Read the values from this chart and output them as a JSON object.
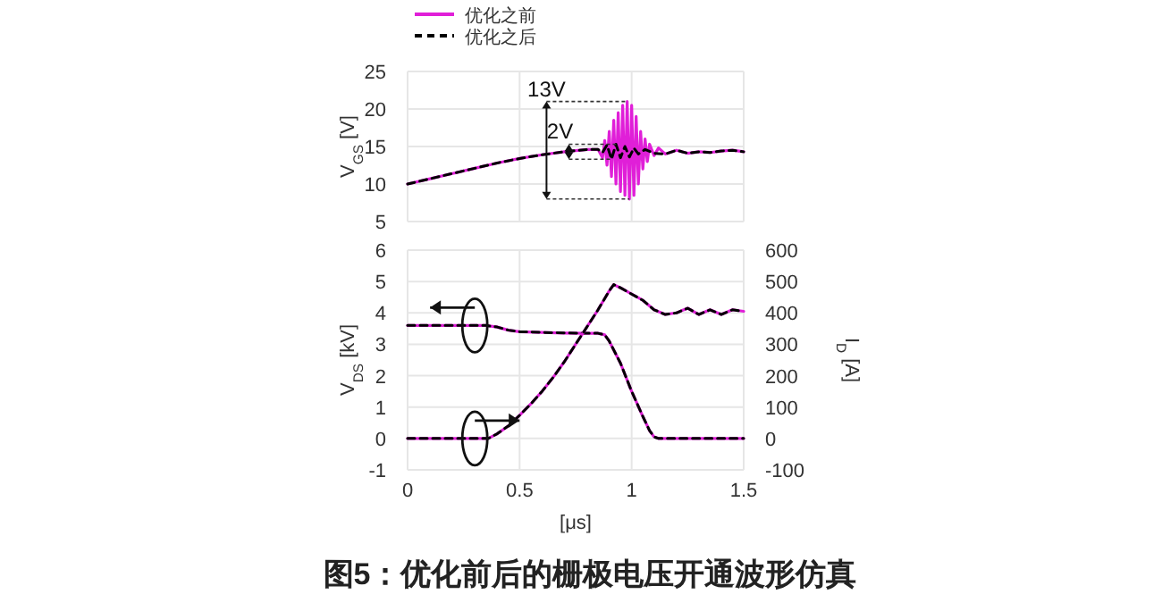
{
  "chart_data": [
    {
      "type": "line",
      "ylabel": "V$_{GS}$ [V]",
      "xlim": [
        0,
        1.5
      ],
      "xticks": [
        0,
        0.5,
        1,
        1.5
      ],
      "ylim": [
        5,
        25
      ],
      "yticks": [
        5,
        10,
        15,
        20,
        25
      ],
      "tick_labels": "y",
      "grid": true,
      "legend": "top left",
      "series": [
        {
          "name": "优化之前",
          "color": "#e01fd8",
          "line_style": "solid",
          "x": [
            0,
            0.1,
            0.2,
            0.3,
            0.4,
            0.5,
            0.6,
            0.7,
            0.8,
            0.85,
            0.87,
            0.88,
            0.89,
            0.9,
            0.91,
            0.92,
            0.93,
            0.94,
            0.95,
            0.96,
            0.97,
            0.98,
            0.99,
            1.0,
            1.01,
            1.02,
            1.03,
            1.04,
            1.05,
            1.06,
            1.07,
            1.08,
            1.1,
            1.12,
            1.15,
            1.2,
            1.25,
            1.3,
            1.35,
            1.4,
            1.45,
            1.5
          ],
          "values": [
            10,
            10.7,
            11.4,
            12.1,
            12.8,
            13.4,
            13.9,
            14.3,
            14.6,
            14.6,
            13.5,
            15.8,
            12.5,
            17,
            11,
            18.5,
            10,
            19.5,
            9,
            20.5,
            8.5,
            21,
            8,
            20.5,
            8.5,
            19,
            10,
            17,
            12,
            16,
            13,
            15.3,
            13.8,
            14.8,
            14,
            14.5,
            14.1,
            14.3,
            14.2,
            14.4,
            14.5,
            14.3
          ]
        },
        {
          "name": "优化之后",
          "color": "#000000",
          "line_style": "dashed",
          "x": [
            0,
            0.1,
            0.2,
            0.3,
            0.4,
            0.5,
            0.6,
            0.7,
            0.8,
            0.85,
            0.87,
            0.89,
            0.91,
            0.93,
            0.95,
            0.97,
            0.99,
            1.01,
            1.03,
            1.06,
            1.1,
            1.15,
            1.2,
            1.25,
            1.3,
            1.35,
            1.4,
            1.45,
            1.5
          ],
          "values": [
            10,
            10.7,
            11.4,
            12.1,
            12.8,
            13.4,
            13.9,
            14.3,
            14.6,
            14.6,
            14.2,
            15.2,
            13.3,
            15.3,
            13.5,
            15,
            13.6,
            14.8,
            14,
            14.6,
            14.1,
            14,
            14.5,
            14.1,
            14.3,
            14.2,
            14.4,
            14.5,
            14.3
          ]
        }
      ],
      "annotations": [
        {
          "text": "13V",
          "x": 0.62,
          "y": 21
        },
        {
          "text": "2V",
          "x": 0.72,
          "y": 15.3
        }
      ]
    },
    {
      "type": "line",
      "xlabel": "[μs]",
      "ylabel": "V$_{DS}$ [kV]",
      "y2label": "I$_{D}$ [A]",
      "xlim": [
        0,
        1.5
      ],
      "xticks": [
        0,
        0.5,
        1,
        1.5
      ],
      "ylim": [
        -1,
        6
      ],
      "yticks": [
        -1,
        0,
        1,
        2,
        3,
        4,
        5,
        6
      ],
      "y2lim": [
        -100,
        600
      ],
      "y2ticks": [
        -100,
        0,
        100,
        200,
        300,
        400,
        500,
        600
      ],
      "grid": true,
      "series": [
        {
          "color": "#e01fd8",
          "line_style": "solid",
          "x": [
            0,
            0.35,
            0.4,
            0.45,
            0.5,
            0.6,
            0.7,
            0.8,
            0.85,
            0.88,
            0.9,
            0.95,
            1.0,
            1.05,
            1.08,
            1.1,
            1.12,
            1.5
          ],
          "values": [
            3.6,
            3.6,
            3.55,
            3.45,
            3.4,
            3.38,
            3.36,
            3.35,
            3.35,
            3.3,
            3.1,
            2.4,
            1.5,
            0.7,
            0.25,
            0.05,
            0,
            0
          ]
        },
        {
          "color": "#000000",
          "line_style": "dashed",
          "x": [
            0,
            0.35,
            0.4,
            0.45,
            0.5,
            0.6,
            0.7,
            0.8,
            0.85,
            0.88,
            0.9,
            0.95,
            1.0,
            1.05,
            1.08,
            1.1,
            1.12,
            1.5
          ],
          "values": [
            3.6,
            3.6,
            3.55,
            3.45,
            3.4,
            3.38,
            3.36,
            3.35,
            3.35,
            3.3,
            3.1,
            2.4,
            1.5,
            0.7,
            0.25,
            0.05,
            0,
            0
          ]
        },
        {
          "color": "#e01fd8",
          "line_style": "solid",
          "axis": "y2",
          "x": [
            0,
            0.36,
            0.4,
            0.45,
            0.5,
            0.55,
            0.6,
            0.65,
            0.7,
            0.75,
            0.8,
            0.85,
            0.9,
            0.92,
            0.95,
            1.0,
            1.05,
            1.1,
            1.15,
            1.2,
            1.25,
            1.3,
            1.35,
            1.4,
            1.45,
            1.5
          ],
          "values": [
            0,
            0,
            15,
            40,
            74,
            110,
            150,
            195,
            245,
            300,
            355,
            410,
            470,
            490,
            480,
            460,
            440,
            410,
            395,
            400,
            415,
            395,
            410,
            395,
            410,
            405
          ]
        },
        {
          "color": "#000000",
          "line_style": "dashed",
          "axis": "y2",
          "x": [
            0,
            0.36,
            0.4,
            0.45,
            0.5,
            0.55,
            0.6,
            0.65,
            0.7,
            0.75,
            0.8,
            0.85,
            0.9,
            0.92,
            0.95,
            1.0,
            1.05,
            1.1,
            1.15,
            1.2,
            1.25,
            1.3,
            1.35,
            1.4,
            1.45,
            1.5
          ],
          "values": [
            0,
            0,
            15,
            40,
            74,
            110,
            150,
            195,
            245,
            300,
            355,
            410,
            470,
            490,
            480,
            460,
            440,
            410,
            395,
            400,
            415,
            395,
            410,
            395,
            410,
            405
          ]
        }
      ],
      "annotations": [
        "图5：优化前后的栅极电压开通波形仿真"
      ]
    }
  ]
}
